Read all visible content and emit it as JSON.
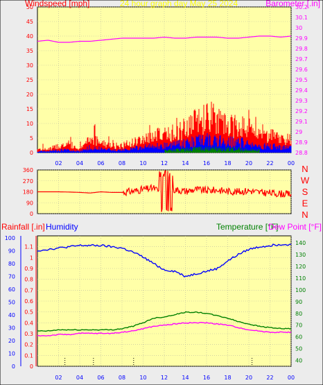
{
  "window": {
    "title": "24 hour graph day   May 25 2024"
  },
  "colors": {
    "plot_bg": "#ffffa8",
    "frame_bg": "#ececec",
    "grid": "#b8b8a0",
    "wind": "#ff0000",
    "gust": "#0000ff",
    "wind_green": "#008000",
    "baro": "#ff00ff",
    "humidity": "#0000ff",
    "temperature": "#008000",
    "dewpoint": "#ff00ff",
    "rain": "#ff0000"
  },
  "chart_data": [
    {
      "type": "line",
      "title": "24 hour graph day   May 25 2024",
      "left_axis_label": "Windspeed [mph]",
      "right_axis_label": "Barometer [.in]",
      "ylim": [
        0,
        50
      ],
      "y_ticks": [
        "0",
        "5",
        "10",
        "15",
        "20",
        "25",
        "30",
        "35",
        "40",
        "45",
        "50"
      ],
      "y2lim": [
        28.8,
        30.2
      ],
      "y2_ticks": [
        "28.8",
        "28.9",
        "29",
        "29.1",
        "29.2",
        "29.3",
        "29.4",
        "29.5",
        "29.6",
        "29.7",
        "29.8",
        "29.9",
        "30",
        "30.1",
        "30.2"
      ],
      "x_ticks": [
        "02",
        "04",
        "06",
        "08",
        "10",
        "12",
        "14",
        "16",
        "18",
        "20",
        "22",
        "00"
      ],
      "grid": true,
      "series": [
        {
          "name": "Windspeed [mph]",
          "axis": "left",
          "x": [
            0,
            1,
            2,
            3,
            4,
            5,
            6,
            7,
            8,
            9,
            10,
            11,
            12,
            13,
            14,
            15,
            16,
            17,
            18,
            19,
            20,
            21,
            22,
            23,
            24
          ],
          "values": [
            1,
            1,
            2,
            2,
            1,
            4,
            3,
            2,
            2,
            3,
            4,
            5,
            5,
            6,
            7,
            9,
            10,
            9,
            8,
            8,
            7,
            5,
            5,
            4,
            4
          ]
        },
        {
          "name": "Barometer [.in]",
          "axis": "right",
          "x": [
            0,
            1,
            2,
            3,
            4,
            5,
            6,
            7,
            8,
            9,
            10,
            11,
            12,
            13,
            14,
            15,
            16,
            17,
            18,
            19,
            20,
            21,
            22,
            23,
            24
          ],
          "values": [
            29.87,
            29.88,
            29.86,
            29.86,
            29.87,
            29.87,
            29.88,
            29.89,
            29.9,
            29.9,
            29.9,
            29.9,
            29.91,
            29.9,
            29.9,
            29.91,
            29.91,
            29.91,
            29.9,
            29.9,
            29.91,
            29.92,
            29.92,
            29.91,
            29.92
          ]
        }
      ]
    },
    {
      "type": "line",
      "title": "",
      "y_ticks": [
        "0",
        "90",
        "180",
        "270",
        "360"
      ],
      "ylim": [
        0,
        360
      ],
      "compass": [
        "N",
        "W",
        "S",
        "E",
        "N"
      ],
      "series": [
        {
          "x": [
            0,
            1,
            2,
            3,
            4,
            5,
            6,
            7,
            8,
            9,
            10,
            11,
            12,
            13,
            14,
            15,
            16,
            17,
            18,
            19,
            20,
            21,
            22,
            23,
            24
          ],
          "values": [
            180,
            180,
            180,
            178,
            175,
            170,
            180,
            175,
            175,
            185,
            200,
            210,
            160,
            200,
            185,
            200,
            190,
            195,
            185,
            180,
            190,
            175,
            170,
            165,
            160
          ]
        }
      ]
    },
    {
      "type": "line",
      "title": "",
      "left_axis_label": "Rainfall [.in]",
      "left_axis_label_2": "Humidity",
      "right_axis_label": "Temperature [°F]",
      "right_axis_label_2": "Dew Point [°F]",
      "hum_ticks": [
        "0",
        "10",
        "20",
        "30",
        "40",
        "50",
        "60",
        "70",
        "80",
        "90",
        "100"
      ],
      "rain_ticks": [
        "0",
        "0.1",
        "0.2",
        "0.3",
        "0.4",
        "0.5",
        "0.6",
        "0.7",
        "0.8",
        "0.9",
        "1",
        "1.1"
      ],
      "rain_ylim": [
        0,
        1.2
      ],
      "temp_ticks": [
        "40",
        "50",
        "60",
        "70",
        "80",
        "90",
        "100",
        "110",
        "120",
        "130",
        "140"
      ],
      "temp_ylim": [
        35,
        146
      ],
      "x_ticks": [
        "02",
        "04",
        "06",
        "08",
        "10",
        "12",
        "14",
        "16",
        "18",
        "20",
        "22",
        "00"
      ],
      "series": [
        {
          "name": "Humidity",
          "axis": "humidity",
          "x": [
            0,
            1,
            2,
            3,
            4,
            5,
            6,
            7,
            8,
            9,
            10,
            11,
            12,
            13,
            14,
            15,
            16,
            17,
            18,
            19,
            20,
            21,
            22,
            23,
            24
          ],
          "values": [
            90,
            91,
            92,
            93,
            94,
            94,
            94,
            93,
            92,
            89,
            85,
            80,
            75,
            74,
            70,
            72,
            74,
            76,
            82,
            87,
            91,
            93,
            94,
            95,
            95
          ]
        },
        {
          "name": "Temperature [°F]",
          "axis": "temperature",
          "x": [
            0,
            1,
            2,
            3,
            4,
            5,
            6,
            7,
            8,
            9,
            10,
            11,
            12,
            13,
            14,
            15,
            16,
            17,
            18,
            19,
            20,
            21,
            22,
            23,
            24
          ],
          "values": [
            65,
            65,
            66,
            66,
            66,
            66,
            66,
            66,
            67,
            69,
            72,
            76,
            77,
            79,
            81,
            81,
            80,
            78,
            76,
            73,
            71,
            69,
            68,
            67,
            67
          ]
        },
        {
          "name": "Dew Point [°F]",
          "axis": "temperature",
          "x": [
            0,
            1,
            2,
            3,
            4,
            5,
            6,
            7,
            8,
            9,
            10,
            11,
            12,
            13,
            14,
            15,
            16,
            17,
            18,
            19,
            20,
            21,
            22,
            23,
            24
          ],
          "values": [
            61,
            61,
            62,
            62,
            63,
            63,
            63,
            63,
            64,
            65,
            67,
            69,
            70,
            71,
            72,
            72,
            72,
            71,
            70,
            68,
            66,
            65,
            64,
            64,
            64
          ]
        }
      ]
    }
  ]
}
